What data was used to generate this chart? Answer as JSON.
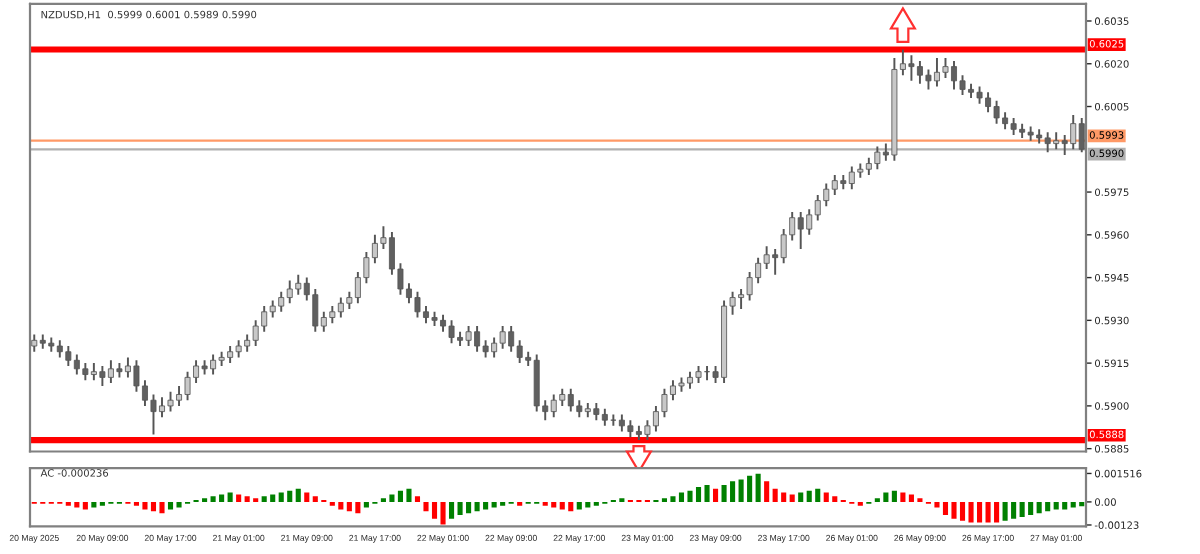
{
  "chart_data": [
    {
      "type": "candlestick",
      "title": "NZDUSD,H1  0.5999 0.6001 0.5989 0.5990",
      "tick_labels": "y",
      "categories": [
        null,
        null,
        null,
        null,
        null,
        null,
        null,
        null,
        null,
        null,
        null,
        null,
        null,
        null,
        null,
        null,
        null,
        null,
        null,
        null,
        null,
        null,
        null,
        null,
        null,
        null,
        null,
        null,
        null,
        null,
        null,
        null,
        null,
        null,
        null,
        null,
        null,
        null,
        null,
        null,
        null,
        null,
        null,
        null,
        null,
        null,
        null,
        null,
        null,
        null,
        null,
        null,
        null,
        null,
        null,
        null,
        null,
        null,
        null,
        null,
        null,
        null,
        null,
        null,
        null,
        null,
        null,
        null,
        null,
        null,
        null,
        null,
        null,
        null,
        null,
        null,
        null,
        null,
        null,
        null,
        null,
        null,
        null,
        null,
        null,
        null,
        null,
        null,
        null,
        null,
        null,
        null,
        null,
        null,
        null,
        null,
        null,
        null,
        null,
        null,
        null,
        null,
        null,
        null,
        null,
        null,
        null,
        null,
        null,
        null,
        null,
        null,
        null,
        null,
        null,
        null,
        null,
        null,
        null,
        null,
        null,
        null,
        null,
        null
      ],
      "ohlc": [
        [
          0.5921,
          0.5925,
          0.5919,
          0.5923
        ],
        [
          0.5923,
          0.5925,
          0.592,
          0.5922
        ],
        [
          0.5922,
          0.5924,
          0.5919,
          0.5921
        ],
        [
          0.5921,
          0.5923,
          0.5917,
          0.5919
        ],
        [
          0.5919,
          0.5921,
          0.5914,
          0.5916
        ],
        [
          0.5916,
          0.5918,
          0.5911,
          0.5913
        ],
        [
          0.5913,
          0.5915,
          0.5909,
          0.5911
        ],
        [
          0.5911,
          0.5915,
          0.5909,
          0.5912
        ],
        [
          0.5912,
          0.5914,
          0.5907,
          0.591
        ],
        [
          0.591,
          0.5916,
          0.5908,
          0.5913
        ],
        [
          0.5913,
          0.5915,
          0.591,
          0.5912
        ],
        [
          0.5912,
          0.5917,
          0.591,
          0.5914
        ],
        [
          0.5914,
          0.5916,
          0.5905,
          0.5907
        ],
        [
          0.5907,
          0.5909,
          0.59,
          0.5902
        ],
        [
          0.5902,
          0.5904,
          0.589,
          0.5898
        ],
        [
          0.5898,
          0.5903,
          0.5896,
          0.59
        ],
        [
          0.59,
          0.5905,
          0.5898,
          0.5902
        ],
        [
          0.5902,
          0.5907,
          0.59,
          0.5904
        ],
        [
          0.5904,
          0.5912,
          0.5902,
          0.591
        ],
        [
          0.591,
          0.5916,
          0.5908,
          0.5914
        ],
        [
          0.5914,
          0.5916,
          0.5911,
          0.5913
        ],
        [
          0.5913,
          0.5918,
          0.5911,
          0.5916
        ],
        [
          0.5916,
          0.5919,
          0.5914,
          0.5917
        ],
        [
          0.5917,
          0.5921,
          0.5915,
          0.5919
        ],
        [
          0.5919,
          0.5923,
          0.5917,
          0.5921
        ],
        [
          0.5921,
          0.5925,
          0.5919,
          0.5923
        ],
        [
          0.5923,
          0.593,
          0.5921,
          0.5928
        ],
        [
          0.5928,
          0.5935,
          0.5926,
          0.5933
        ],
        [
          0.5933,
          0.5937,
          0.5931,
          0.5935
        ],
        [
          0.5935,
          0.594,
          0.5933,
          0.5938
        ],
        [
          0.5938,
          0.5944,
          0.5936,
          0.5941
        ],
        [
          0.5941,
          0.5946,
          0.5939,
          0.5943
        ],
        [
          0.5943,
          0.5945,
          0.5937,
          0.5939
        ],
        [
          0.5939,
          0.5941,
          0.5926,
          0.5928
        ],
        [
          0.5928,
          0.5933,
          0.5926,
          0.5931
        ],
        [
          0.5931,
          0.5935,
          0.5929,
          0.5933
        ],
        [
          0.5933,
          0.5938,
          0.5931,
          0.5936
        ],
        [
          0.5936,
          0.594,
          0.5934,
          0.5938
        ],
        [
          0.5938,
          0.5947,
          0.5936,
          0.5945
        ],
        [
          0.5945,
          0.5954,
          0.5943,
          0.5952
        ],
        [
          0.5952,
          0.596,
          0.595,
          0.5957
        ],
        [
          0.5957,
          0.5963,
          0.5955,
          0.5959
        ],
        [
          0.5959,
          0.5961,
          0.5946,
          0.5948
        ],
        [
          0.5948,
          0.595,
          0.5939,
          0.5941
        ],
        [
          0.5941,
          0.5943,
          0.5936,
          0.5938
        ],
        [
          0.5938,
          0.594,
          0.5931,
          0.5933
        ],
        [
          0.5933,
          0.5935,
          0.5929,
          0.5931
        ],
        [
          0.5931,
          0.5933,
          0.5928,
          0.593
        ],
        [
          0.593,
          0.5932,
          0.5926,
          0.5928
        ],
        [
          0.5928,
          0.593,
          0.5922,
          0.5924
        ],
        [
          0.5924,
          0.5926,
          0.5921,
          0.5923
        ],
        [
          0.5923,
          0.5928,
          0.5921,
          0.5926
        ],
        [
          0.5926,
          0.5928,
          0.5919,
          0.5921
        ],
        [
          0.5921,
          0.5923,
          0.5917,
          0.5919
        ],
        [
          0.5919,
          0.5924,
          0.5917,
          0.5922
        ],
        [
          0.5922,
          0.5928,
          0.592,
          0.5926
        ],
        [
          0.5926,
          0.5928,
          0.5919,
          0.5921
        ],
        [
          0.5921,
          0.5923,
          0.5915,
          0.5917
        ],
        [
          0.5917,
          0.5919,
          0.5914,
          0.5916
        ],
        [
          0.5916,
          0.5918,
          0.5898,
          0.59
        ],
        [
          0.59,
          0.5902,
          0.5895,
          0.5898
        ],
        [
          0.5898,
          0.5904,
          0.5896,
          0.5902
        ],
        [
          0.5902,
          0.5906,
          0.59,
          0.5904
        ],
        [
          0.5904,
          0.5906,
          0.5898,
          0.59
        ],
        [
          0.59,
          0.5902,
          0.5896,
          0.5898
        ],
        [
          0.5898,
          0.5901,
          0.5896,
          0.5899
        ],
        [
          0.5899,
          0.5901,
          0.5895,
          0.5897
        ],
        [
          0.5897,
          0.5899,
          0.5893,
          0.5895
        ],
        [
          0.5895,
          0.5897,
          0.5893,
          0.5895
        ],
        [
          0.5895,
          0.5897,
          0.5891,
          0.5893
        ],
        [
          0.5893,
          0.5895,
          0.5889,
          0.5891
        ],
        [
          0.5891,
          0.5893,
          0.5888,
          0.589
        ],
        [
          0.589,
          0.5895,
          0.5888,
          0.5893
        ],
        [
          0.5893,
          0.59,
          0.5891,
          0.5898
        ],
        [
          0.5898,
          0.5906,
          0.5896,
          0.5904
        ],
        [
          0.5904,
          0.5909,
          0.5902,
          0.5907
        ],
        [
          0.5907,
          0.591,
          0.5905,
          0.5908
        ],
        [
          0.5908,
          0.5912,
          0.5906,
          0.591
        ],
        [
          0.591,
          0.5914,
          0.5908,
          0.5912
        ],
        [
          0.5912,
          0.5914,
          0.5909,
          0.5912
        ],
        [
          0.5912,
          0.5914,
          0.5908,
          0.591
        ],
        [
          0.591,
          0.5937,
          0.5908,
          0.5935
        ],
        [
          0.5935,
          0.594,
          0.5932,
          0.5938
        ],
        [
          0.5938,
          0.5941,
          0.5934,
          0.5939
        ],
        [
          0.5939,
          0.5947,
          0.5937,
          0.5945
        ],
        [
          0.5945,
          0.5952,
          0.5943,
          0.595
        ],
        [
          0.595,
          0.5956,
          0.5948,
          0.5953
        ],
        [
          0.5953,
          0.5955,
          0.5946,
          0.5952
        ],
        [
          0.5952,
          0.5962,
          0.595,
          0.596
        ],
        [
          0.596,
          0.5968,
          0.5958,
          0.5966
        ],
        [
          0.5966,
          0.5968,
          0.5955,
          0.5962
        ],
        [
          0.5962,
          0.5969,
          0.596,
          0.5967
        ],
        [
          0.5967,
          0.5974,
          0.5965,
          0.5972
        ],
        [
          0.5972,
          0.5978,
          0.597,
          0.5976
        ],
        [
          0.5976,
          0.5981,
          0.5974,
          0.5979
        ],
        [
          0.5979,
          0.5981,
          0.5976,
          0.5978
        ],
        [
          0.5978,
          0.5984,
          0.5976,
          0.5982
        ],
        [
          0.5982,
          0.5985,
          0.598,
          0.5983
        ],
        [
          0.5983,
          0.5987,
          0.5981,
          0.5985
        ],
        [
          0.5985,
          0.5991,
          0.5983,
          0.5989
        ],
        [
          0.5989,
          0.5992,
          0.5986,
          0.5988
        ],
        [
          0.5988,
          0.6022,
          0.5986,
          0.6018
        ],
        [
          0.6018,
          0.6025,
          0.6016,
          0.602
        ],
        [
          0.602,
          0.6023,
          0.6014,
          0.6019
        ],
        [
          0.6019,
          0.6021,
          0.6013,
          0.6016
        ],
        [
          0.6016,
          0.6018,
          0.6011,
          0.6014
        ],
        [
          0.6014,
          0.6022,
          0.6012,
          0.6017
        ],
        [
          0.6017,
          0.6022,
          0.6015,
          0.6019
        ],
        [
          0.6019,
          0.6021,
          0.6011,
          0.6014
        ],
        [
          0.6014,
          0.6016,
          0.6009,
          0.6011
        ],
        [
          0.6011,
          0.6013,
          0.6008,
          0.601
        ],
        [
          0.601,
          0.6012,
          0.6006,
          0.6008
        ],
        [
          0.6008,
          0.601,
          0.6003,
          0.6005
        ],
        [
          0.6005,
          0.6007,
          0.5999,
          0.6001
        ],
        [
          0.6001,
          0.6003,
          0.5997,
          0.5999
        ],
        [
          0.5999,
          0.6001,
          0.5995,
          0.5997
        ],
        [
          0.5997,
          0.5999,
          0.5994,
          0.5996
        ],
        [
          0.5996,
          0.5998,
          0.5993,
          0.5995
        ],
        [
          0.5995,
          0.5997,
          0.5992,
          0.5994
        ],
        [
          0.5994,
          0.5996,
          0.5989,
          0.5992
        ],
        [
          0.5992,
          0.5996,
          0.599,
          0.5993
        ],
        [
          0.5993,
          0.5995,
          0.5988,
          0.5992
        ],
        [
          0.5992,
          0.6002,
          0.599,
          0.5999
        ],
        [
          0.5999,
          0.6001,
          0.5989,
          0.599
        ]
      ],
      "ylim": [
        0.5884,
        0.6041
      ],
      "yticks": [
        0.5885,
        {
          "value": 0.59,
          "label": "0.5900"
        },
        0.5915,
        {
          "value": 0.593,
          "label": "0.5930"
        },
        0.5945,
        {
          "value": 0.596,
          "label": "0.5960"
        },
        0.5975,
        0.6005,
        {
          "value": 0.602,
          "label": "0.6020"
        },
        0.6035
      ],
      "ref_lines": [
        {
          "axis": "y",
          "value": 0.6025,
          "label": "0.6025",
          "color": "#ff0000",
          "line_style": "solid"
        },
        {
          "axis": "y",
          "value": 0.5888,
          "label": "0.5888",
          "color": "#ff0000",
          "line_style": "solid"
        },
        {
          "axis": "y",
          "value": 0.5993,
          "label": "0.5993",
          "color": "#ff9966",
          "line_style": "solid"
        },
        {
          "axis": "y",
          "value": 0.599,
          "label": "0.5990",
          "color": "#b0b0b0",
          "line_style": "solid"
        }
      ]
    },
    {
      "type": "bar",
      "title": "AC -0.000236",
      "categories": [
        "20 May 2025",
        null,
        null,
        null,
        null,
        null,
        null,
        null,
        "20 May 09:00",
        null,
        null,
        null,
        null,
        null,
        null,
        null,
        "20 May 17:00",
        null,
        null,
        null,
        null,
        null,
        null,
        null,
        "21 May 01:00",
        null,
        null,
        null,
        null,
        null,
        null,
        null,
        "21 May 09:00",
        null,
        null,
        null,
        null,
        null,
        null,
        null,
        "21 May 17:00",
        null,
        null,
        null,
        null,
        null,
        null,
        null,
        "22 May 01:00",
        null,
        null,
        null,
        null,
        null,
        null,
        null,
        "22 May 09:00",
        null,
        null,
        null,
        null,
        null,
        null,
        null,
        "22 May 17:00",
        null,
        null,
        null,
        null,
        null,
        null,
        null,
        "23 May 01:00",
        null,
        null,
        null,
        null,
        null,
        null,
        null,
        "23 May 09:00",
        null,
        null,
        null,
        null,
        null,
        null,
        null,
        "23 May 17:00",
        null,
        null,
        null,
        null,
        null,
        null,
        null,
        "26 May 01:00",
        null,
        null,
        null,
        null,
        null,
        null,
        null,
        "26 May 09:00",
        null,
        null,
        null,
        null,
        null,
        null,
        null,
        "26 May 17:00",
        null,
        null,
        null,
        null,
        null,
        null,
        null,
        "27 May 01:00",
        null,
        null,
        null
      ],
      "values": [
        -0.0001,
        -0.0001,
        -0.0001,
        -0.0001,
        -0.0002,
        -0.0003,
        -0.0004,
        -0.0003,
        -0.0002,
        -0.0001,
        -0.0001,
        -0.0001,
        -0.0002,
        -0.0004,
        -0.0005,
        -0.0006,
        -0.0004,
        -0.0003,
        -0.0001,
        0.0001,
        0.0002,
        0.0003,
        0.0004,
        0.0005,
        0.0004,
        0.0003,
        0.0002,
        0.0003,
        0.0004,
        0.0005,
        0.0006,
        0.0007,
        0.0005,
        0.0003,
        0.0001,
        -0.0002,
        -0.0004,
        -0.0005,
        -0.0006,
        -0.0003,
        -0.0001,
        0.0002,
        0.0004,
        0.0006,
        0.0007,
        0.0003,
        -0.0005,
        -0.0009,
        -0.0012,
        -0.0009,
        -0.0007,
        -0.0006,
        -0.0005,
        -0.0004,
        -0.0003,
        -0.0002,
        -0.0001,
        -0.0002,
        -0.0001,
        -0.0001,
        -0.0002,
        -0.0003,
        -0.0004,
        -0.0005,
        -0.0004,
        -0.0003,
        -0.0002,
        -0.0001,
        0.0001,
        0.0002,
        0.0001,
        0.0001,
        0.0001,
        0.0001,
        0.0002,
        0.0003,
        0.0005,
        0.0006,
        0.0008,
        0.0009,
        0.0007,
        0.0009,
        0.0011,
        0.0012,
        0.0014,
        0.0015,
        0.0011,
        0.0007,
        0.0005,
        0.0004,
        0.0005,
        0.0006,
        0.0007,
        0.0005,
        0.0003,
        0.0001,
        -0.0001,
        -0.0002,
        -0.0001,
        0.0002,
        0.0005,
        0.0006,
        0.0005,
        0.0004,
        0.0002,
        -0.0001,
        -0.0003,
        -0.0007,
        -0.0009,
        -0.001,
        -0.0011,
        -0.0011,
        -0.0011,
        -0.0011,
        -0.001,
        -0.0009,
        -0.0008,
        -0.0007,
        -0.0006,
        -0.0005,
        -0.0004,
        -0.0004,
        -0.0003,
        -0.000236
      ],
      "colors": [
        "#ff0000",
        "#ff0000",
        "#ff0000",
        "#ff0000",
        "#ff0000",
        "#ff0000",
        "#ff0000",
        "#008000",
        "#008000",
        "#008000",
        "#008000",
        "#ff0000",
        "#ff0000",
        "#ff0000",
        "#ff0000",
        "#ff0000",
        "#008000",
        "#008000",
        "#008000",
        "#008000",
        "#008000",
        "#008000",
        "#008000",
        "#008000",
        "#ff0000",
        "#ff0000",
        "#ff0000",
        "#008000",
        "#008000",
        "#008000",
        "#008000",
        "#008000",
        "#ff0000",
        "#ff0000",
        "#ff0000",
        "#ff0000",
        "#ff0000",
        "#ff0000",
        "#ff0000",
        "#008000",
        "#008000",
        "#008000",
        "#008000",
        "#008000",
        "#008000",
        "#ff0000",
        "#ff0000",
        "#ff0000",
        "#ff0000",
        "#008000",
        "#008000",
        "#008000",
        "#008000",
        "#008000",
        "#008000",
        "#008000",
        "#008000",
        "#ff0000",
        "#008000",
        "#008000",
        "#ff0000",
        "#ff0000",
        "#ff0000",
        "#ff0000",
        "#008000",
        "#008000",
        "#008000",
        "#008000",
        "#008000",
        "#008000",
        "#ff0000",
        "#ff0000",
        "#ff0000",
        "#008000",
        "#008000",
        "#008000",
        "#008000",
        "#008000",
        "#008000",
        "#008000",
        "#ff0000",
        "#008000",
        "#008000",
        "#008000",
        "#008000",
        "#008000",
        "#ff0000",
        "#ff0000",
        "#ff0000",
        "#ff0000",
        "#008000",
        "#008000",
        "#008000",
        "#ff0000",
        "#ff0000",
        "#ff0000",
        "#ff0000",
        "#ff0000",
        "#008000",
        "#008000",
        "#008000",
        "#008000",
        "#ff0000",
        "#ff0000",
        "#ff0000",
        "#ff0000",
        "#ff0000",
        "#ff0000",
        "#ff0000",
        "#ff0000",
        "#ff0000",
        "#ff0000",
        "#ff0000",
        "#ff0000",
        "#008000",
        "#008000",
        "#008000",
        "#008000",
        "#008000",
        "#008000",
        "#008000",
        "#008000",
        "#008000",
        "#008000"
      ],
      "ylim": [
        -0.0013,
        0.0018
      ],
      "yticks": [
        {
          "value": 0.001516,
          "label": "0.001516"
        },
        {
          "value": 0,
          "label": "0.00"
        },
        {
          "value": -0.00123,
          "label": "-0.00123"
        }
      ]
    }
  ]
}
